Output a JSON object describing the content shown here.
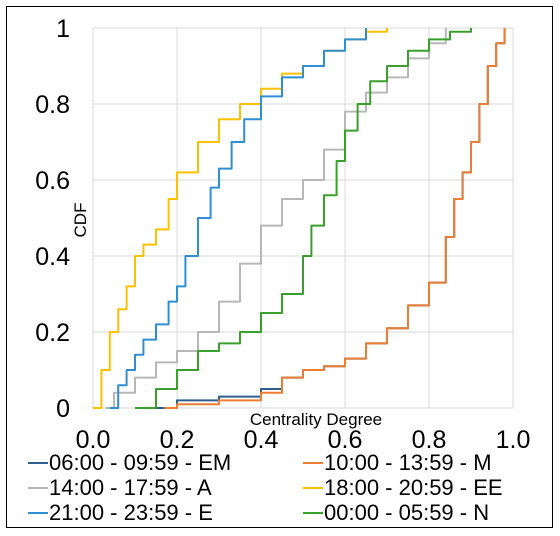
{
  "chart_data": {
    "type": "line",
    "title": "",
    "xlabel": "Centrality Degree",
    "ylabel": "CDF",
    "xlim": [
      0,
      1.0
    ],
    "ylim": [
      0,
      1
    ],
    "x_ticks": [
      "0.0",
      "0.2",
      "0.4",
      "0.6",
      "0.8",
      "1.0"
    ],
    "y_ticks": [
      "0",
      "0.2",
      "0.4",
      "0.6",
      "0.8",
      "1"
    ],
    "grid": true,
    "legend_position": "bottom",
    "series": [
      {
        "name": "06:00 - 09:59 - EM",
        "color": "#2e5f8a",
        "x": [
          0.15,
          0.2,
          0.3,
          0.4,
          0.45,
          0.5,
          0.55,
          0.6,
          0.65,
          0.7,
          0.75,
          0.8,
          0.84,
          0.86,
          0.88,
          0.9,
          0.92,
          0.94,
          0.96,
          0.98
        ],
        "y": [
          0.0,
          0.02,
          0.03,
          0.05,
          0.08,
          0.1,
          0.11,
          0.13,
          0.17,
          0.21,
          0.27,
          0.33,
          0.45,
          0.55,
          0.62,
          0.7,
          0.8,
          0.9,
          0.96,
          1.0
        ]
      },
      {
        "name": "10:00 - 13:59 - M",
        "color": "#ed7d31",
        "x": [
          0.17,
          0.2,
          0.3,
          0.4,
          0.45,
          0.5,
          0.55,
          0.6,
          0.65,
          0.7,
          0.75,
          0.8,
          0.84,
          0.86,
          0.88,
          0.9,
          0.92,
          0.94,
          0.96,
          0.98
        ],
        "y": [
          0.0,
          0.01,
          0.02,
          0.04,
          0.08,
          0.1,
          0.11,
          0.13,
          0.17,
          0.21,
          0.27,
          0.33,
          0.45,
          0.55,
          0.62,
          0.7,
          0.8,
          0.9,
          0.96,
          1.0
        ]
      },
      {
        "name": "14:00 - 17:59 - A",
        "color": "#b7b7b7",
        "x": [
          0.03,
          0.05,
          0.1,
          0.15,
          0.2,
          0.25,
          0.3,
          0.35,
          0.4,
          0.45,
          0.5,
          0.55,
          0.6,
          0.65,
          0.7,
          0.75,
          0.8,
          0.84
        ],
        "y": [
          0.0,
          0.04,
          0.08,
          0.12,
          0.15,
          0.2,
          0.28,
          0.38,
          0.48,
          0.55,
          0.6,
          0.68,
          0.78,
          0.83,
          0.87,
          0.92,
          0.96,
          1.0
        ]
      },
      {
        "name": "18:00 - 20:59 - EE",
        "color": "#ffc000",
        "x": [
          0.0,
          0.02,
          0.04,
          0.06,
          0.08,
          0.1,
          0.12,
          0.15,
          0.18,
          0.2,
          0.25,
          0.3,
          0.35,
          0.4,
          0.45,
          0.5,
          0.55,
          0.6,
          0.65,
          0.7
        ],
        "y": [
          0.0,
          0.1,
          0.2,
          0.26,
          0.32,
          0.4,
          0.43,
          0.47,
          0.55,
          0.62,
          0.7,
          0.76,
          0.8,
          0.84,
          0.88,
          0.9,
          0.94,
          0.97,
          0.99,
          1.0
        ]
      },
      {
        "name": "21:00 - 23:59 - E",
        "color": "#2e8fd4",
        "x": [
          0.04,
          0.06,
          0.08,
          0.1,
          0.12,
          0.15,
          0.18,
          0.2,
          0.22,
          0.25,
          0.28,
          0.3,
          0.33,
          0.36,
          0.4,
          0.45,
          0.5,
          0.55,
          0.6,
          0.65
        ],
        "y": [
          0.0,
          0.06,
          0.1,
          0.14,
          0.18,
          0.22,
          0.28,
          0.32,
          0.4,
          0.5,
          0.58,
          0.63,
          0.7,
          0.76,
          0.82,
          0.87,
          0.9,
          0.94,
          0.97,
          1.0
        ]
      },
      {
        "name": "00:00 - 05:59 - N",
        "color": "#3aa02c",
        "x": [
          0.1,
          0.15,
          0.2,
          0.25,
          0.3,
          0.35,
          0.4,
          0.45,
          0.5,
          0.52,
          0.55,
          0.58,
          0.6,
          0.63,
          0.66,
          0.7,
          0.75,
          0.8,
          0.85,
          0.9
        ],
        "y": [
          0.0,
          0.05,
          0.1,
          0.15,
          0.17,
          0.2,
          0.25,
          0.3,
          0.4,
          0.48,
          0.56,
          0.65,
          0.73,
          0.8,
          0.86,
          0.9,
          0.94,
          0.97,
          0.99,
          1.0
        ]
      }
    ]
  }
}
